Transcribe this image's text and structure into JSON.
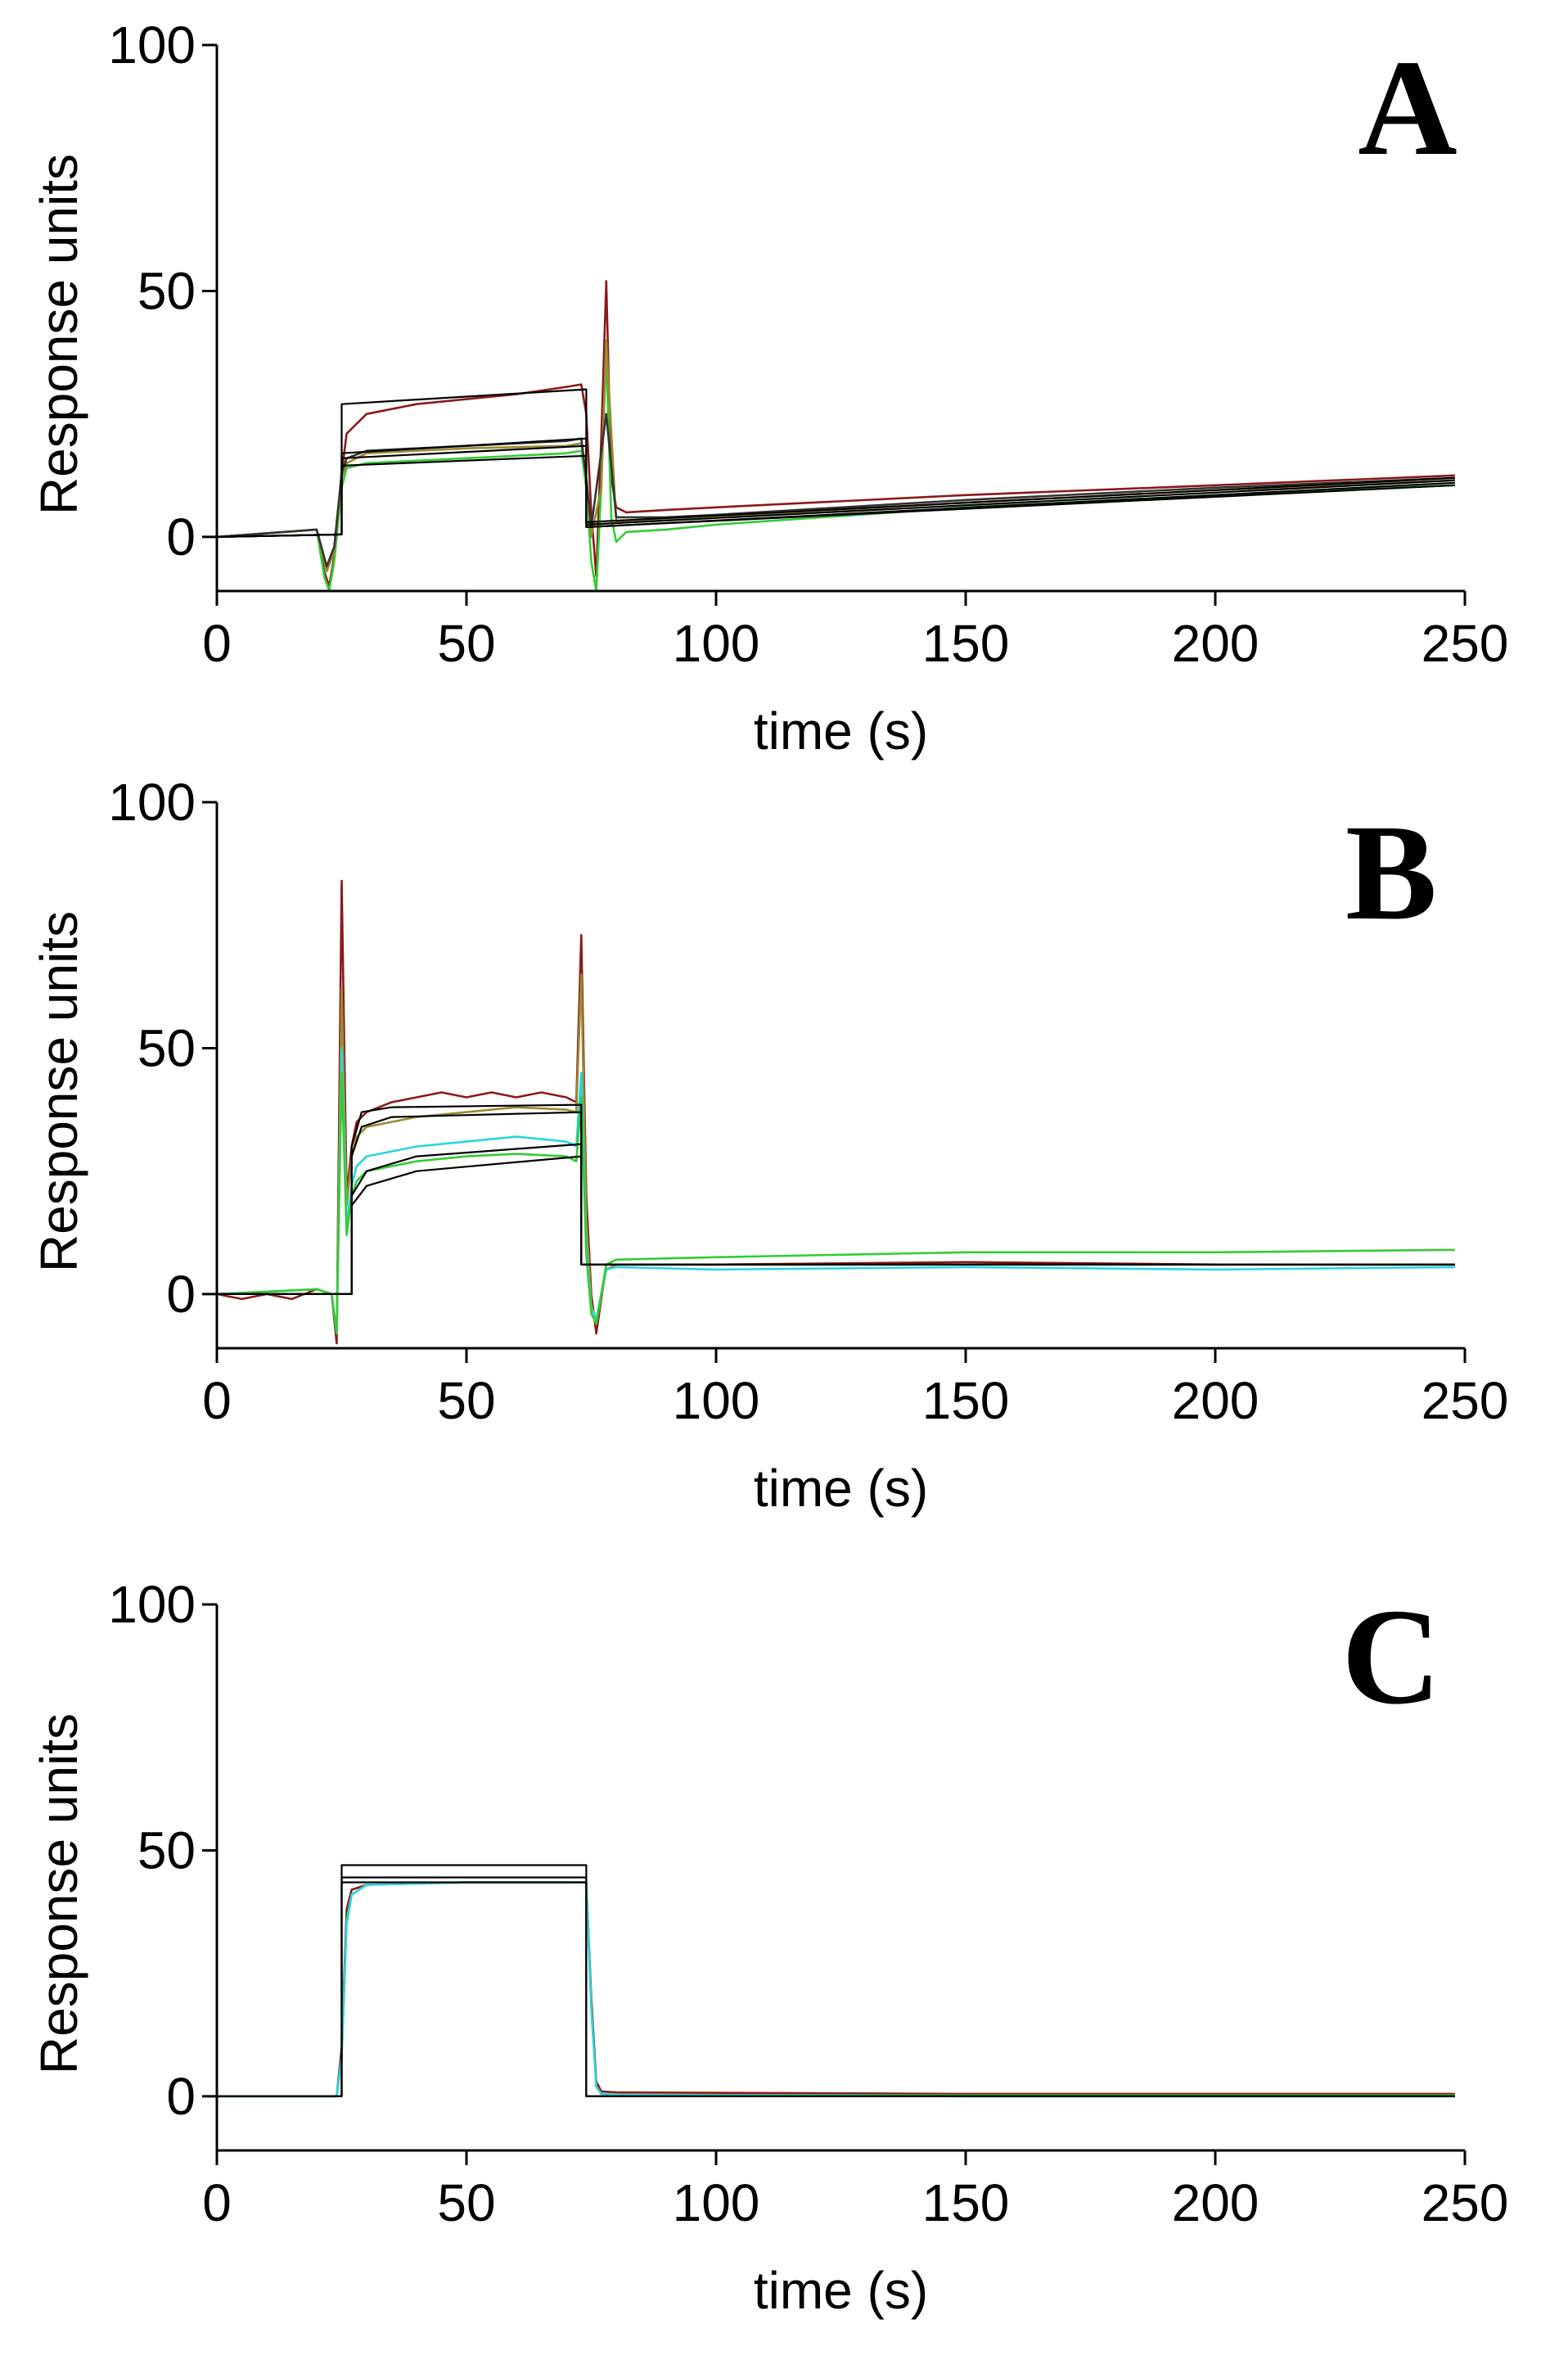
{
  "chart_data": [
    {
      "type": "line",
      "panel_label": "A",
      "xlabel": "time (s)",
      "ylabel": "Response units",
      "xlim": [
        0,
        250
      ],
      "ylim": [
        -11,
        100
      ],
      "xticks": [
        0,
        50,
        100,
        150,
        200,
        250
      ],
      "yticks": [
        0,
        50,
        100
      ],
      "xtick_labels": [
        "0",
        "50",
        "100",
        "150",
        "200",
        "250"
      ],
      "ytick_labels": [
        "0",
        "50",
        "100"
      ],
      "grid": false,
      "series": [
        {
          "name": "data-red",
          "color": "#8b1a1a",
          "role": "data",
          "x": [
            0,
            20,
            21.5,
            22.5,
            23.5,
            25,
            26,
            30,
            40,
            50,
            60,
            70,
            73,
            74,
            75,
            76,
            77,
            78,
            79,
            80,
            82,
            90,
            100,
            150,
            200,
            248
          ],
          "y": [
            0,
            1.5,
            -7,
            -10,
            -4,
            13,
            21,
            25,
            27,
            28,
            29,
            30.5,
            31,
            25,
            5,
            -8,
            20,
            52,
            12,
            6,
            5,
            5.5,
            6,
            8.5,
            10.5,
            12.5
          ]
        },
        {
          "name": "data-green",
          "color": "#33cc33",
          "role": "data",
          "x": [
            0,
            20,
            21.5,
            22.5,
            23.5,
            25,
            26,
            30,
            50,
            70,
            73,
            74,
            75,
            76,
            77,
            78,
            79,
            80,
            82,
            90,
            100,
            150,
            200,
            248
          ],
          "y": [
            0,
            1.5,
            -8,
            -11,
            -5,
            10,
            14,
            15,
            16,
            17,
            17.5,
            10,
            -5,
            -11,
            10,
            38,
            4,
            -1,
            1,
            1.5,
            2.5,
            6,
            8.5,
            10.5
          ]
        },
        {
          "name": "data-olive",
          "color": "#9a8a30",
          "role": "data",
          "x": [
            0,
            20,
            22,
            23.5,
            25,
            26,
            30,
            50,
            70,
            73,
            74,
            75,
            77,
            78,
            80,
            90,
            100,
            150,
            200,
            248
          ],
          "y": [
            0,
            1.5,
            -7,
            -3,
            12,
            15,
            17,
            18,
            18.5,
            19,
            12,
            0,
            10,
            40,
            3,
            3.5,
            4,
            7,
            9.5,
            11.5
          ]
        },
        {
          "name": "data-dark",
          "color": "#333333",
          "role": "data",
          "x": [
            0,
            20,
            22,
            23.5,
            25,
            26,
            30,
            50,
            70,
            73,
            74,
            75,
            78,
            80,
            90,
            100,
            150,
            200,
            248
          ],
          "y": [
            0,
            1.5,
            -6,
            -2,
            13,
            16,
            17.5,
            18.5,
            19.5,
            20,
            12,
            2,
            25,
            4,
            4,
            4.5,
            7.5,
            10,
            12
          ]
        },
        {
          "name": "fit-1",
          "color": "#000000",
          "role": "fit",
          "x": [
            0,
            25,
            25,
            74,
            74,
            248
          ],
          "y": [
            0,
            0.5,
            27,
            30,
            3,
            12
          ]
        },
        {
          "name": "fit-2",
          "color": "#000000",
          "role": "fit",
          "x": [
            0,
            25,
            25,
            74,
            74,
            248
          ],
          "y": [
            0,
            0.5,
            17,
            20,
            2.5,
            11.5
          ]
        },
        {
          "name": "fit-3",
          "color": "#000000",
          "role": "fit",
          "x": [
            0,
            25,
            25,
            74,
            74,
            248
          ],
          "y": [
            0,
            0.5,
            16,
            18.5,
            2,
            11
          ]
        },
        {
          "name": "fit-4",
          "color": "#000000",
          "role": "fit",
          "x": [
            0,
            25,
            25,
            74,
            74,
            248
          ],
          "y": [
            0,
            0.5,
            14.5,
            16.5,
            2,
            10.5
          ]
        }
      ]
    },
    {
      "type": "line",
      "panel_label": "B",
      "xlabel": "time (s)",
      "ylabel": "Response units",
      "xlim": [
        0,
        250
      ],
      "ylim": [
        -11,
        100
      ],
      "xticks": [
        0,
        50,
        100,
        150,
        200,
        250
      ],
      "yticks": [
        0,
        50,
        100
      ],
      "xtick_labels": [
        "0",
        "50",
        "100",
        "150",
        "200",
        "250"
      ],
      "ytick_labels": [
        "0",
        "50",
        "100"
      ],
      "grid": false,
      "series": [
        {
          "name": "data-red",
          "color": "#8b1a1a",
          "role": "data",
          "x": [
            0,
            5,
            10,
            15,
            20,
            23,
            24,
            25,
            26,
            27,
            28,
            29,
            30,
            35,
            40,
            45,
            50,
            55,
            60,
            65,
            70,
            72,
            73,
            74,
            75,
            76,
            78,
            80,
            100,
            150,
            200,
            248
          ],
          "y": [
            0,
            -1,
            0,
            -1,
            1,
            0,
            -10,
            84,
            20,
            30,
            35,
            36,
            37,
            39,
            40,
            41,
            40,
            41,
            40,
            41,
            40,
            39,
            73,
            20,
            0,
            -8,
            6,
            6,
            6,
            6.5,
            6,
            6
          ]
        },
        {
          "name": "data-olive",
          "color": "#9a8a30",
          "role": "data",
          "x": [
            0,
            20,
            23,
            24,
            25,
            26,
            27,
            28,
            30,
            40,
            50,
            60,
            70,
            72,
            73,
            74,
            75,
            76,
            78,
            80,
            100,
            150,
            200,
            248
          ],
          "y": [
            0,
            1,
            0,
            -8,
            62,
            18,
            28,
            32,
            34,
            36,
            37,
            38,
            37.5,
            37,
            65,
            15,
            -2,
            -6,
            5,
            6,
            6,
            6,
            6,
            6
          ]
        },
        {
          "name": "data-cyan",
          "color": "#2ad4e0",
          "role": "data",
          "x": [
            0,
            20,
            23,
            24,
            25,
            26,
            27,
            28,
            30,
            40,
            50,
            60,
            70,
            72,
            73,
            74,
            75,
            76,
            78,
            80,
            100,
            150,
            200,
            248
          ],
          "y": [
            0,
            1,
            0,
            -8,
            50,
            14,
            22,
            26,
            28,
            30,
            31,
            32,
            31,
            30,
            45,
            10,
            -3,
            -5,
            5,
            5.5,
            5,
            5.5,
            5,
            5.5
          ]
        },
        {
          "name": "data-green",
          "color": "#33cc33",
          "role": "data",
          "x": [
            0,
            20,
            23,
            24,
            25,
            26,
            27,
            28,
            30,
            40,
            50,
            60,
            70,
            72,
            73,
            74,
            75,
            76,
            78,
            80,
            100,
            150,
            200,
            248
          ],
          "y": [
            0,
            1,
            0,
            -8,
            45,
            12,
            20,
            23,
            25,
            27,
            28,
            28.5,
            28,
            27,
            40,
            8,
            -4,
            -6,
            6,
            7,
            7.5,
            8.5,
            8.5,
            9
          ]
        },
        {
          "name": "fit-1",
          "color": "#000000",
          "role": "fit",
          "x": [
            0,
            27,
            27,
            29,
            35,
            73,
            73,
            248
          ],
          "y": [
            0,
            0,
            30,
            37,
            38,
            38.5,
            6,
            6
          ]
        },
        {
          "name": "fit-2",
          "color": "#000000",
          "role": "fit",
          "x": [
            0,
            27,
            27,
            29,
            35,
            73,
            73,
            248
          ],
          "y": [
            0,
            0,
            28,
            34,
            36,
            37,
            6,
            6
          ]
        },
        {
          "name": "fit-3",
          "color": "#000000",
          "role": "fit",
          "x": [
            0,
            27,
            27,
            30,
            40,
            73,
            73,
            248
          ],
          "y": [
            0,
            0,
            20,
            25,
            28,
            30.5,
            6,
            6
          ]
        },
        {
          "name": "fit-4",
          "color": "#000000",
          "role": "fit",
          "x": [
            0,
            27,
            27,
            30,
            40,
            73,
            73,
            248
          ],
          "y": [
            0,
            0,
            18,
            22,
            25,
            28,
            6,
            6
          ]
        }
      ]
    },
    {
      "type": "line",
      "panel_label": "C",
      "xlabel": "time (s)",
      "ylabel": "Response units",
      "xlim": [
        0,
        250
      ],
      "ylim": [
        -11,
        100
      ],
      "xticks": [
        0,
        50,
        100,
        150,
        200,
        250
      ],
      "yticks": [
        0,
        50,
        100
      ],
      "xtick_labels": [
        "0",
        "50",
        "100",
        "150",
        "200",
        "250"
      ],
      "ytick_labels": [
        "0",
        "50",
        "100"
      ],
      "grid": false,
      "series": [
        {
          "name": "data-red",
          "color": "#8b1a1a",
          "role": "data",
          "x": [
            0,
            24,
            25,
            26,
            27,
            30,
            50,
            70,
            74,
            75,
            76,
            77,
            80,
            150,
            248
          ],
          "y": [
            0,
            0,
            10,
            38,
            42,
            43,
            43.5,
            43.5,
            43.5,
            20,
            3,
            1,
            0.8,
            0.5,
            0.5
          ]
        },
        {
          "name": "data-green",
          "color": "#33cc33",
          "role": "data",
          "x": [
            0,
            24,
            25,
            26,
            27,
            30,
            50,
            70,
            74,
            75,
            76,
            77,
            80,
            150,
            248
          ],
          "y": [
            0,
            0,
            8,
            36,
            41,
            43,
            43.5,
            43.5,
            43.5,
            18,
            2,
            0.5,
            0.3,
            0.2,
            0.2
          ]
        },
        {
          "name": "data-cyan",
          "color": "#2ad4e0",
          "role": "data",
          "x": [
            0,
            24,
            25,
            26,
            27,
            30,
            50,
            70,
            74,
            75,
            76,
            77,
            80,
            150,
            248
          ],
          "y": [
            0,
            0,
            8,
            35,
            41,
            43,
            43.5,
            43.5,
            43.5,
            18,
            2,
            0.5,
            0.3,
            0,
            0
          ]
        },
        {
          "name": "fit-1",
          "color": "#000000",
          "role": "fit",
          "x": [
            0,
            25,
            25,
            74,
            74,
            248
          ],
          "y": [
            0,
            0,
            47,
            47,
            0,
            0
          ]
        },
        {
          "name": "fit-2",
          "color": "#000000",
          "role": "fit",
          "x": [
            0,
            25,
            25,
            74,
            74,
            248
          ],
          "y": [
            0,
            0,
            44.5,
            44.5,
            0,
            0
          ]
        },
        {
          "name": "fit-3",
          "color": "#000000",
          "role": "fit",
          "x": [
            0,
            25,
            25,
            74,
            74,
            248
          ],
          "y": [
            0,
            0,
            43.5,
            43.5,
            0,
            0
          ]
        }
      ]
    }
  ]
}
